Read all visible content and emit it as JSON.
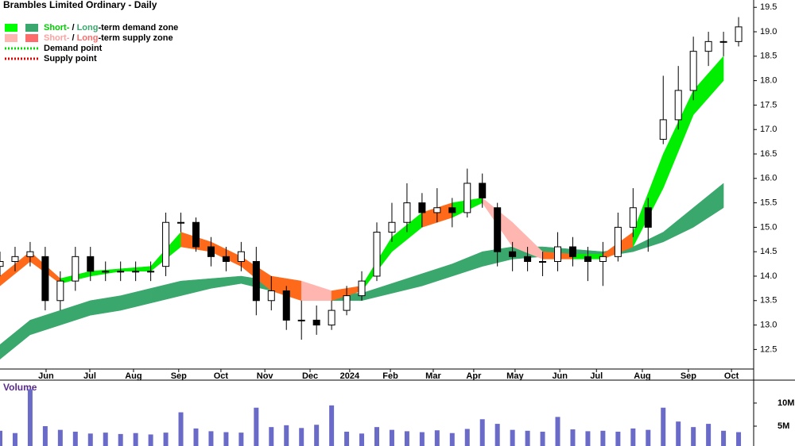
{
  "chart_data": {
    "type": "candlestick",
    "title": "Brambles Limited Ordinary - Daily",
    "legend": [
      {
        "labels": [
          "Short-",
          " / ",
          "Long",
          "-term demand zone"
        ],
        "label_colors": [
          "#00cc00",
          "#000000",
          "#3aa76d",
          "#000000"
        ],
        "swatches": [
          "#00ff00",
          "#3aa76d"
        ]
      },
      {
        "labels": [
          "Short-",
          " / ",
          "Long",
          "-term supply zone"
        ],
        "label_colors": [
          "#ff9f9f",
          "#000000",
          "#ff6b6b",
          "#000000"
        ],
        "swatches": [
          "#ffb6b0",
          "#ff6b6b"
        ]
      },
      {
        "labels": [
          "Demand point"
        ],
        "label_colors": [
          "#000000"
        ],
        "line_color": "#00dd00"
      },
      {
        "labels": [
          "Supply point"
        ],
        "label_colors": [
          "#000000"
        ],
        "line_color": "#dd0000"
      }
    ],
    "x": [
      0,
      7,
      14,
      21,
      28,
      35,
      42,
      49,
      56,
      63,
      70,
      77,
      84,
      91,
      98,
      105,
      112,
      119,
      126,
      133,
      140,
      147,
      154,
      161,
      168,
      175,
      182,
      189,
      196,
      203,
      210,
      217,
      224,
      231,
      238,
      245,
      252,
      259,
      266,
      273,
      280,
      287,
      294,
      301,
      308,
      315,
      322,
      329,
      336,
      343
    ],
    "open": [
      14.2,
      14.3,
      14.4,
      14.4,
      13.5,
      13.9,
      14.4,
      14.1,
      14.1,
      14.1,
      14.1,
      14.2,
      15.1,
      15.1,
      14.6,
      14.4,
      14.3,
      14.3,
      13.5,
      13.7,
      13.1,
      13.1,
      13.0,
      13.3,
      13.6,
      14.0,
      14.9,
      15.1,
      15.5,
      15.3,
      15.4,
      15.3,
      15.9,
      15.4,
      14.5,
      14.4,
      14.3,
      14.3,
      14.6,
      14.4,
      14.3,
      14.4,
      15.0,
      15.4,
      16.8,
      17.2,
      17.8,
      18.6,
      18.8,
      18.8
    ],
    "high": [
      14.5,
      14.6,
      14.7,
      14.6,
      14.1,
      14.6,
      14.6,
      14.3,
      14.3,
      14.3,
      14.3,
      15.3,
      15.3,
      15.2,
      14.8,
      14.6,
      14.7,
      14.6,
      14.0,
      13.8,
      13.5,
      13.4,
      13.5,
      13.8,
      14.1,
      15.1,
      15.5,
      15.9,
      15.7,
      15.8,
      15.6,
      16.2,
      16.1,
      15.5,
      14.7,
      14.6,
      14.5,
      14.9,
      14.8,
      14.6,
      14.7,
      15.3,
      15.8,
      15.6,
      18.1,
      18.3,
      18.9,
      19.0,
      19.0,
      19.3
    ],
    "low": [
      14.0,
      14.1,
      14.2,
      13.3,
      13.3,
      13.7,
      13.9,
      13.9,
      13.9,
      13.9,
      13.9,
      14.0,
      14.9,
      14.5,
      14.2,
      14.1,
      14.1,
      13.2,
      13.3,
      12.9,
      12.7,
      12.8,
      12.9,
      13.2,
      13.5,
      13.9,
      14.7,
      14.9,
      15.0,
      15.1,
      15.0,
      15.2,
      15.4,
      14.2,
      14.1,
      14.1,
      14.0,
      14.1,
      14.2,
      13.9,
      13.8,
      14.3,
      14.8,
      14.5,
      16.7,
      17.0,
      17.6,
      18.3,
      18.5,
      18.7
    ],
    "close": [
      14.3,
      14.4,
      14.5,
      13.5,
      13.9,
      14.4,
      14.1,
      14.1,
      14.1,
      14.1,
      14.1,
      15.1,
      15.1,
      14.6,
      14.4,
      14.3,
      14.5,
      13.5,
      13.7,
      13.1,
      13.1,
      13.0,
      13.3,
      13.6,
      13.9,
      14.9,
      15.1,
      15.5,
      15.3,
      15.4,
      15.3,
      15.9,
      15.6,
      14.5,
      14.4,
      14.3,
      14.3,
      14.6,
      14.4,
      14.3,
      14.4,
      15.0,
      15.4,
      15.0,
      17.2,
      17.8,
      18.6,
      18.8,
      18.8,
      19.1
    ],
    "up_color": "#ffffff",
    "down_color": "#000000",
    "zones": [
      {
        "x": [
          0,
          14,
          28,
          42,
          56,
          70,
          84,
          98,
          112,
          126,
          140,
          154,
          168,
          182,
          196,
          210,
          224,
          238,
          252,
          266,
          280,
          294,
          308,
          322,
          336
        ],
        "lower": [
          12.3,
          12.8,
          13.0,
          13.2,
          13.3,
          13.45,
          13.6,
          13.75,
          13.85,
          13.7,
          13.6,
          13.5,
          13.5,
          13.65,
          13.8,
          14.0,
          14.2,
          14.35,
          14.4,
          14.4,
          14.4,
          14.5,
          14.7,
          15.0,
          15.4
        ],
        "upper": [
          12.6,
          13.1,
          13.3,
          13.5,
          13.6,
          13.75,
          13.9,
          13.95,
          14.0,
          13.9,
          13.8,
          13.65,
          13.65,
          13.85,
          14.05,
          14.25,
          14.5,
          14.6,
          14.6,
          14.55,
          14.5,
          14.6,
          14.9,
          15.4,
          15.9
        ],
        "colors": [
          "#3aa76d",
          "#3aa76d",
          "#3aa76d",
          "#3aa76d",
          "#3aa76d",
          "#3aa76d",
          "#3aa76d",
          "#3aa76d",
          "#3aa76d",
          "#3aa76d",
          "#3aa76d",
          "#3aa76d",
          "#3aa76d",
          "#3aa76d",
          "#3aa76d",
          "#3aa76d",
          "#3aa76d",
          "#3aa76d",
          "#3aa76d",
          "#3aa76d",
          "#3aa76d",
          "#3aa76d",
          "#3aa76d",
          "#3aa76d",
          "#3aa76d"
        ]
      },
      {
        "x": [
          0,
          14,
          28,
          42,
          56,
          70,
          84,
          98,
          112,
          126,
          140,
          154,
          168,
          182,
          196,
          210,
          224,
          238,
          252,
          266,
          280,
          294,
          308,
          322,
          336
        ],
        "lower": [
          13.8,
          14.3,
          13.85,
          14.0,
          14.1,
          14.1,
          14.6,
          14.5,
          14.2,
          13.7,
          13.5,
          13.5,
          13.7,
          14.5,
          15.0,
          15.2,
          15.5,
          14.6,
          14.35,
          14.35,
          14.35,
          14.6,
          15.8,
          17.3,
          18.0
        ],
        "upper": [
          14.0,
          14.5,
          13.95,
          14.1,
          14.15,
          14.2,
          14.9,
          14.7,
          14.4,
          14.0,
          13.9,
          13.7,
          13.8,
          14.8,
          15.3,
          15.5,
          15.6,
          15.1,
          14.5,
          14.45,
          14.45,
          14.9,
          16.5,
          17.8,
          18.5
        ],
        "colors": [
          "#ff6a1a",
          "#ff6a1a",
          "#00ee00",
          "#00ee00",
          "#00ee00",
          "#00ee00",
          "#ff6a1a",
          "#ff6a1a",
          "#ff6a1a",
          "#ff6a1a",
          "#ffb6b0",
          "#ff6a1a",
          "#00ee00",
          "#00ee00",
          "#ff6a1a",
          "#00ee00",
          "#ffb6b0",
          "#ffb6b0",
          "#ff6a1a",
          "#00ee00",
          "#ff6a1a",
          "#00ee00",
          "#00ee00",
          "#00ee00",
          "#00ee00"
        ]
      }
    ],
    "xlim": [
      0,
      350
    ],
    "xticks": [
      {
        "value": 21.4,
        "label": "Jun"
      },
      {
        "value": 41.7,
        "label": "Jul"
      },
      {
        "value": 62,
        "label": "Aug"
      },
      {
        "value": 83,
        "label": "Sep"
      },
      {
        "value": 102.6,
        "label": "Oct"
      },
      {
        "value": 123,
        "label": "Nov"
      },
      {
        "value": 144,
        "label": "Dec"
      },
      {
        "value": 162.4,
        "label": "2024"
      },
      {
        "value": 181.3,
        "label": "Feb"
      },
      {
        "value": 201.2,
        "label": "Mar"
      },
      {
        "value": 220,
        "label": "Apr"
      },
      {
        "value": 239.2,
        "label": "May"
      },
      {
        "value": 260,
        "label": "Jun"
      },
      {
        "value": 277,
        "label": "Jul"
      },
      {
        "value": 298.3,
        "label": "Aug"
      },
      {
        "value": 319.7,
        "label": "Sep"
      },
      {
        "value": 339.7,
        "label": "Oct"
      }
    ],
    "ylim": [
      12.1,
      19.65
    ],
    "yticks": [
      12.5,
      {
        "value": 13,
        "label": "13.0"
      },
      13.5,
      {
        "value": 14,
        "label": "14.0"
      },
      14.5,
      {
        "value": 15,
        "label": "15.0"
      },
      15.5,
      {
        "value": 16,
        "label": "16.0"
      },
      16.5,
      {
        "value": 17,
        "label": "17.0"
      },
      17.5,
      {
        "value": 18,
        "label": "18.0"
      },
      18.5,
      {
        "value": 19,
        "label": "19.0"
      },
      19.5
    ],
    "volume": {
      "title": "Volume",
      "color": "#6a6ac8",
      "values": [
        4000000,
        3500000,
        13000000,
        5000000,
        4200000,
        3800000,
        3400000,
        3600000,
        3300000,
        3500000,
        3200000,
        3600000,
        8000000,
        4500000,
        3900000,
        3700000,
        3600000,
        9000000,
        4800000,
        5200000,
        4600000,
        5300000,
        9500000,
        3800000,
        3400000,
        4800000,
        4200000,
        3900000,
        3700000,
        4100000,
        3500000,
        4400000,
        6500000,
        5500000,
        4200000,
        4000000,
        3800000,
        7000000,
        4300000,
        3900000,
        4000000,
        3800000,
        4500000,
        4200000,
        9000000,
        6000000,
        4800000,
        5500000,
        4000000,
        3700000
      ],
      "ylim": [
        700000,
        14800000
      ],
      "yticks": [
        {
          "value": 5000000,
          "label": "5M"
        },
        {
          "value": 10000000,
          "label": "10M"
        }
      ]
    }
  }
}
